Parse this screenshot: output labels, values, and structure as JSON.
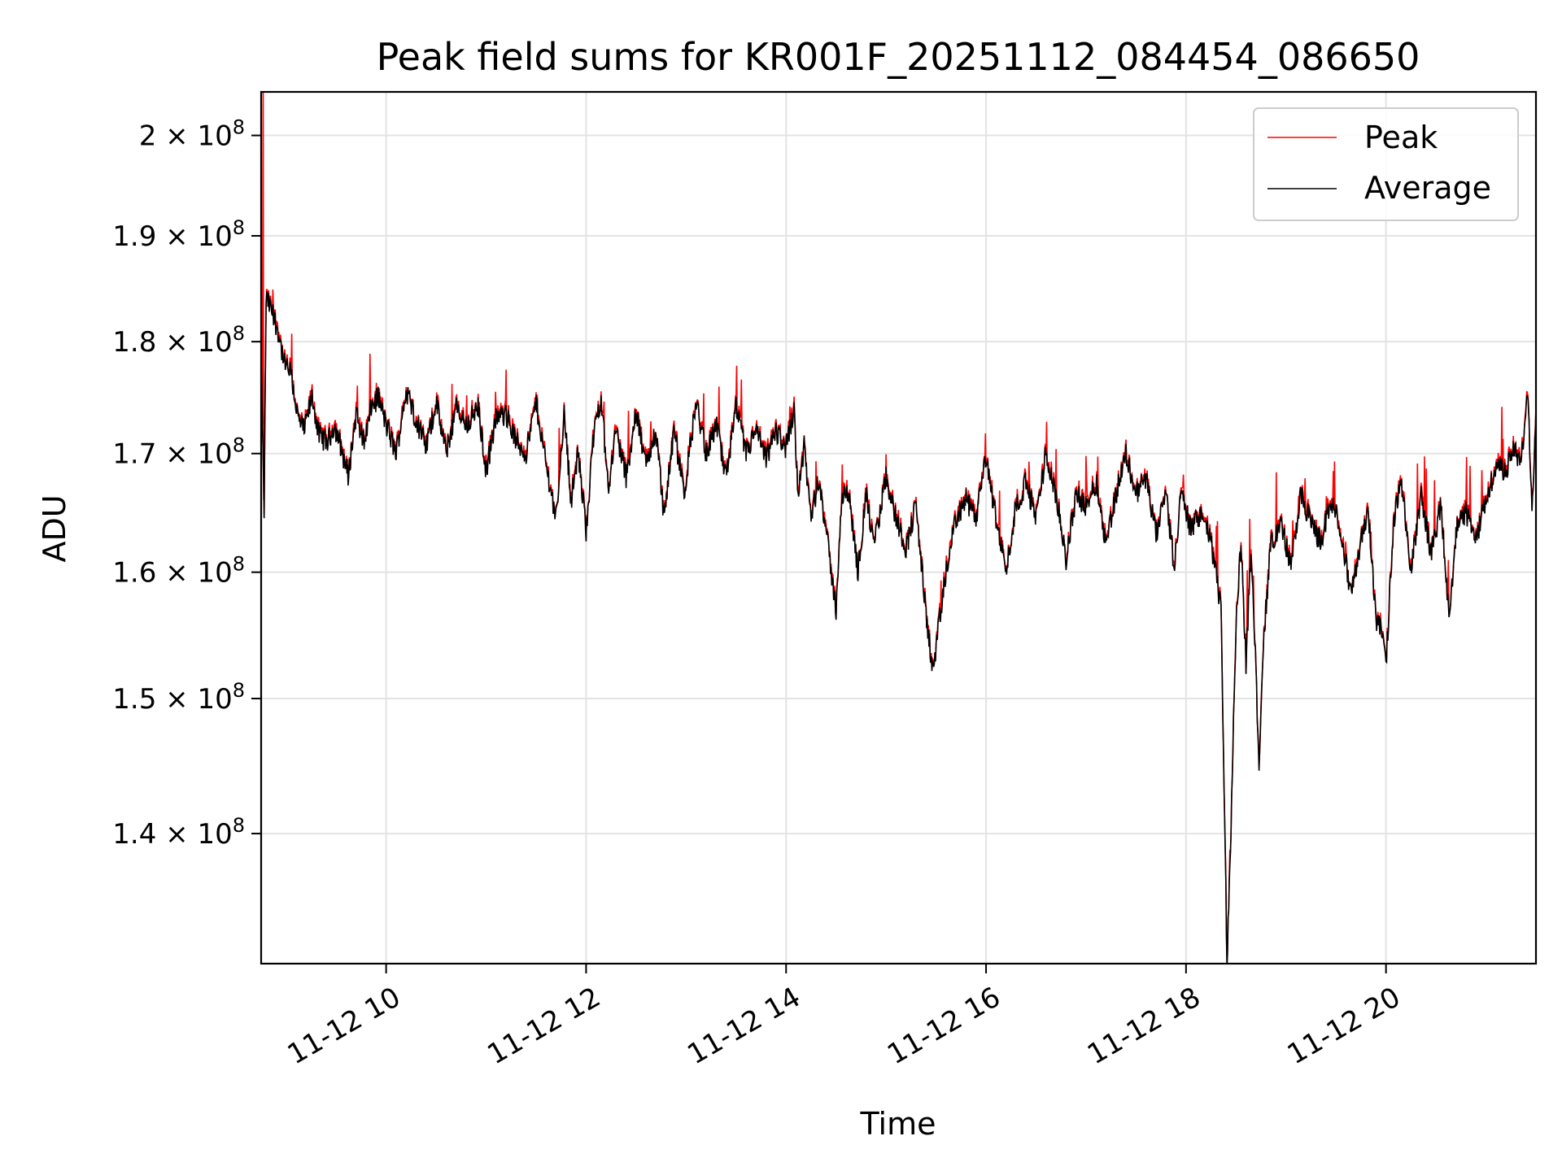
{
  "chart_data": {
    "type": "line",
    "title": "Peak field sums for KR001F_20251112_084454_086650",
    "xlabel": "Time",
    "ylabel": "ADU",
    "yscale": "log",
    "ylim": [
      131000000,
      204500000
    ],
    "xlim_hours": [
      8.75,
      21.5
    ],
    "grid": true,
    "legend_position": "top-right",
    "x_ticks": [
      {
        "hour": 10,
        "label": "11-12 10"
      },
      {
        "hour": 12,
        "label": "11-12 12"
      },
      {
        "hour": 14,
        "label": "11-12 14"
      },
      {
        "hour": 16,
        "label": "11-12 16"
      },
      {
        "hour": 18,
        "label": "11-12 18"
      },
      {
        "hour": 20,
        "label": "11-12 20"
      }
    ],
    "y_ticks": [
      {
        "value": 140000000,
        "mantissa": "1.4",
        "exponent": "8"
      },
      {
        "value": 150000000,
        "mantissa": "1.5",
        "exponent": "8"
      },
      {
        "value": 160000000,
        "mantissa": "1.6",
        "exponent": "8"
      },
      {
        "value": 170000000,
        "mantissa": "1.7",
        "exponent": "8"
      },
      {
        "value": 180000000,
        "mantissa": "1.8",
        "exponent": "8"
      },
      {
        "value": 190000000,
        "mantissa": "1.9",
        "exponent": "8"
      },
      {
        "value": 200000000,
        "mantissa": "2",
        "exponent": "8"
      }
    ],
    "tick_times_sign": "×",
    "tick_base": "10",
    "series": [
      {
        "name": "Peak",
        "color": "#ff0000"
      },
      {
        "name": "Average",
        "color": "#000000"
      }
    ],
    "average_profile": [
      [
        8.75,
        178000000.0
      ],
      [
        8.78,
        165000000.0
      ],
      [
        8.8,
        184000000.0
      ],
      [
        8.85,
        183000000.0
      ],
      [
        8.92,
        181000000.0
      ],
      [
        8.98,
        178000000.0
      ],
      [
        9.05,
        177000000.0
      ],
      [
        9.12,
        173000000.0
      ],
      [
        9.18,
        172000000.0
      ],
      [
        9.26,
        175000000.0
      ],
      [
        9.33,
        171500000.0
      ],
      [
        9.42,
        171000000.0
      ],
      [
        9.48,
        172500000.0
      ],
      [
        9.55,
        170500000.0
      ],
      [
        9.62,
        168000000.0
      ],
      [
        9.7,
        173500000.0
      ],
      [
        9.78,
        171000000.0
      ],
      [
        9.85,
        174000000.0
      ],
      [
        9.92,
        175000000.0
      ],
      [
        10.0,
        172500000.0
      ],
      [
        10.1,
        170000000.0
      ],
      [
        10.2,
        175500000.0
      ],
      [
        10.3,
        173000000.0
      ],
      [
        10.4,
        170500000.0
      ],
      [
        10.5,
        174500000.0
      ],
      [
        10.6,
        170000000.0
      ],
      [
        10.7,
        174000000.0
      ],
      [
        10.8,
        172500000.0
      ],
      [
        10.92,
        174000000.0
      ],
      [
        11.0,
        168500000.0
      ],
      [
        11.1,
        173000000.0
      ],
      [
        11.2,
        173500000.0
      ],
      [
        11.3,
        171000000.0
      ],
      [
        11.4,
        170000000.0
      ],
      [
        11.5,
        174500000.0
      ],
      [
        11.6,
        169000000.0
      ],
      [
        11.7,
        164500000.0
      ],
      [
        11.78,
        173500000.0
      ],
      [
        11.85,
        166000000.0
      ],
      [
        11.92,
        170000000.0
      ],
      [
        12.0,
        163500000.0
      ],
      [
        12.08,
        172000000.0
      ],
      [
        12.15,
        175000000.0
      ],
      [
        12.22,
        167000000.0
      ],
      [
        12.3,
        172000000.0
      ],
      [
        12.4,
        168000000.0
      ],
      [
        12.5,
        173500000.0
      ],
      [
        12.6,
        169000000.0
      ],
      [
        12.7,
        172000000.0
      ],
      [
        12.78,
        164500000.0
      ],
      [
        12.88,
        172000000.0
      ],
      [
        12.98,
        166500000.0
      ],
      [
        13.1,
        174500000.0
      ],
      [
        13.2,
        170000000.0
      ],
      [
        13.3,
        172500000.0
      ],
      [
        13.4,
        168000000.0
      ],
      [
        13.5,
        174000000.0
      ],
      [
        13.6,
        170000000.0
      ],
      [
        13.7,
        172000000.0
      ],
      [
        13.8,
        169500000.0
      ],
      [
        13.9,
        172000000.0
      ],
      [
        14.0,
        170500000.0
      ],
      [
        14.08,
        174000000.0
      ],
      [
        14.12,
        166500000.0
      ],
      [
        14.18,
        170500000.0
      ],
      [
        14.25,
        164500000.0
      ],
      [
        14.33,
        168000000.0
      ],
      [
        14.42,
        162000000.0
      ],
      [
        14.5,
        157000000.0
      ],
      [
        14.55,
        165500000.0
      ],
      [
        14.62,
        167000000.0
      ],
      [
        14.72,
        160000000.0
      ],
      [
        14.8,
        166500000.0
      ],
      [
        14.88,
        162000000.0
      ],
      [
        15.0,
        168000000.0
      ],
      [
        15.1,
        164500000.0
      ],
      [
        15.2,
        162000000.0
      ],
      [
        15.3,
        165500000.0
      ],
      [
        15.4,
        156500000.0
      ],
      [
        15.47,
        152000000.0
      ],
      [
        15.55,
        157000000.0
      ],
      [
        15.62,
        161000000.0
      ],
      [
        15.7,
        164500000.0
      ],
      [
        15.8,
        166000000.0
      ],
      [
        15.9,
        164500000.0
      ],
      [
        16.0,
        169500000.0
      ],
      [
        16.1,
        164500000.0
      ],
      [
        16.2,
        160000000.0
      ],
      [
        16.3,
        165500000.0
      ],
      [
        16.4,
        167500000.0
      ],
      [
        16.5,
        164500000.0
      ],
      [
        16.6,
        170000000.0
      ],
      [
        16.7,
        166500000.0
      ],
      [
        16.8,
        161000000.0
      ],
      [
        16.9,
        166500000.0
      ],
      [
        17.0,
        165500000.0
      ],
      [
        17.1,
        167500000.0
      ],
      [
        17.2,
        162500000.0
      ],
      [
        17.3,
        166500000.0
      ],
      [
        17.4,
        170000000.0
      ],
      [
        17.5,
        166500000.0
      ],
      [
        17.6,
        168000000.0
      ],
      [
        17.7,
        163000000.0
      ],
      [
        17.8,
        166500000.0
      ],
      [
        17.88,
        160500000.0
      ],
      [
        17.95,
        166500000.0
      ],
      [
        18.05,
        163500000.0
      ],
      [
        18.15,
        165000000.0
      ],
      [
        18.25,
        162500000.0
      ],
      [
        18.35,
        157000000.0
      ],
      [
        18.41,
        131000000.0
      ],
      [
        18.45,
        140000000.0
      ],
      [
        18.5,
        155500000.0
      ],
      [
        18.55,
        162500000.0
      ],
      [
        18.6,
        152500000.0
      ],
      [
        18.65,
        162000000.0
      ],
      [
        18.7,
        152000000.0
      ],
      [
        18.73,
        145000000.0
      ],
      [
        18.78,
        155000000.0
      ],
      [
        18.85,
        162500000.0
      ],
      [
        18.95,
        164000000.0
      ],
      [
        19.05,
        160500000.0
      ],
      [
        19.15,
        166500000.0
      ],
      [
        19.25,
        164000000.0
      ],
      [
        19.35,
        162500000.0
      ],
      [
        19.45,
        166000000.0
      ],
      [
        19.55,
        163500000.0
      ],
      [
        19.65,
        158000000.0
      ],
      [
        19.75,
        162500000.0
      ],
      [
        19.82,
        165500000.0
      ],
      [
        19.9,
        156000000.0
      ],
      [
        19.95,
        155500000.0
      ],
      [
        20.0,
        152500000.0
      ],
      [
        20.08,
        164500000.0
      ],
      [
        20.15,
        167500000.0
      ],
      [
        20.25,
        160000000.0
      ],
      [
        20.35,
        166500000.0
      ],
      [
        20.45,
        161500000.0
      ],
      [
        20.55,
        165500000.0
      ],
      [
        20.63,
        156000000.0
      ],
      [
        20.7,
        163500000.0
      ],
      [
        20.8,
        165000000.0
      ],
      [
        20.9,
        162500000.0
      ],
      [
        21.0,
        166000000.0
      ],
      [
        21.1,
        169000000.0
      ],
      [
        21.2,
        168500000.0
      ],
      [
        21.28,
        170500000.0
      ],
      [
        21.35,
        169000000.0
      ],
      [
        21.42,
        175500000.0
      ],
      [
        21.46,
        165000000.0
      ],
      [
        21.5,
        174000000.0
      ]
    ]
  }
}
